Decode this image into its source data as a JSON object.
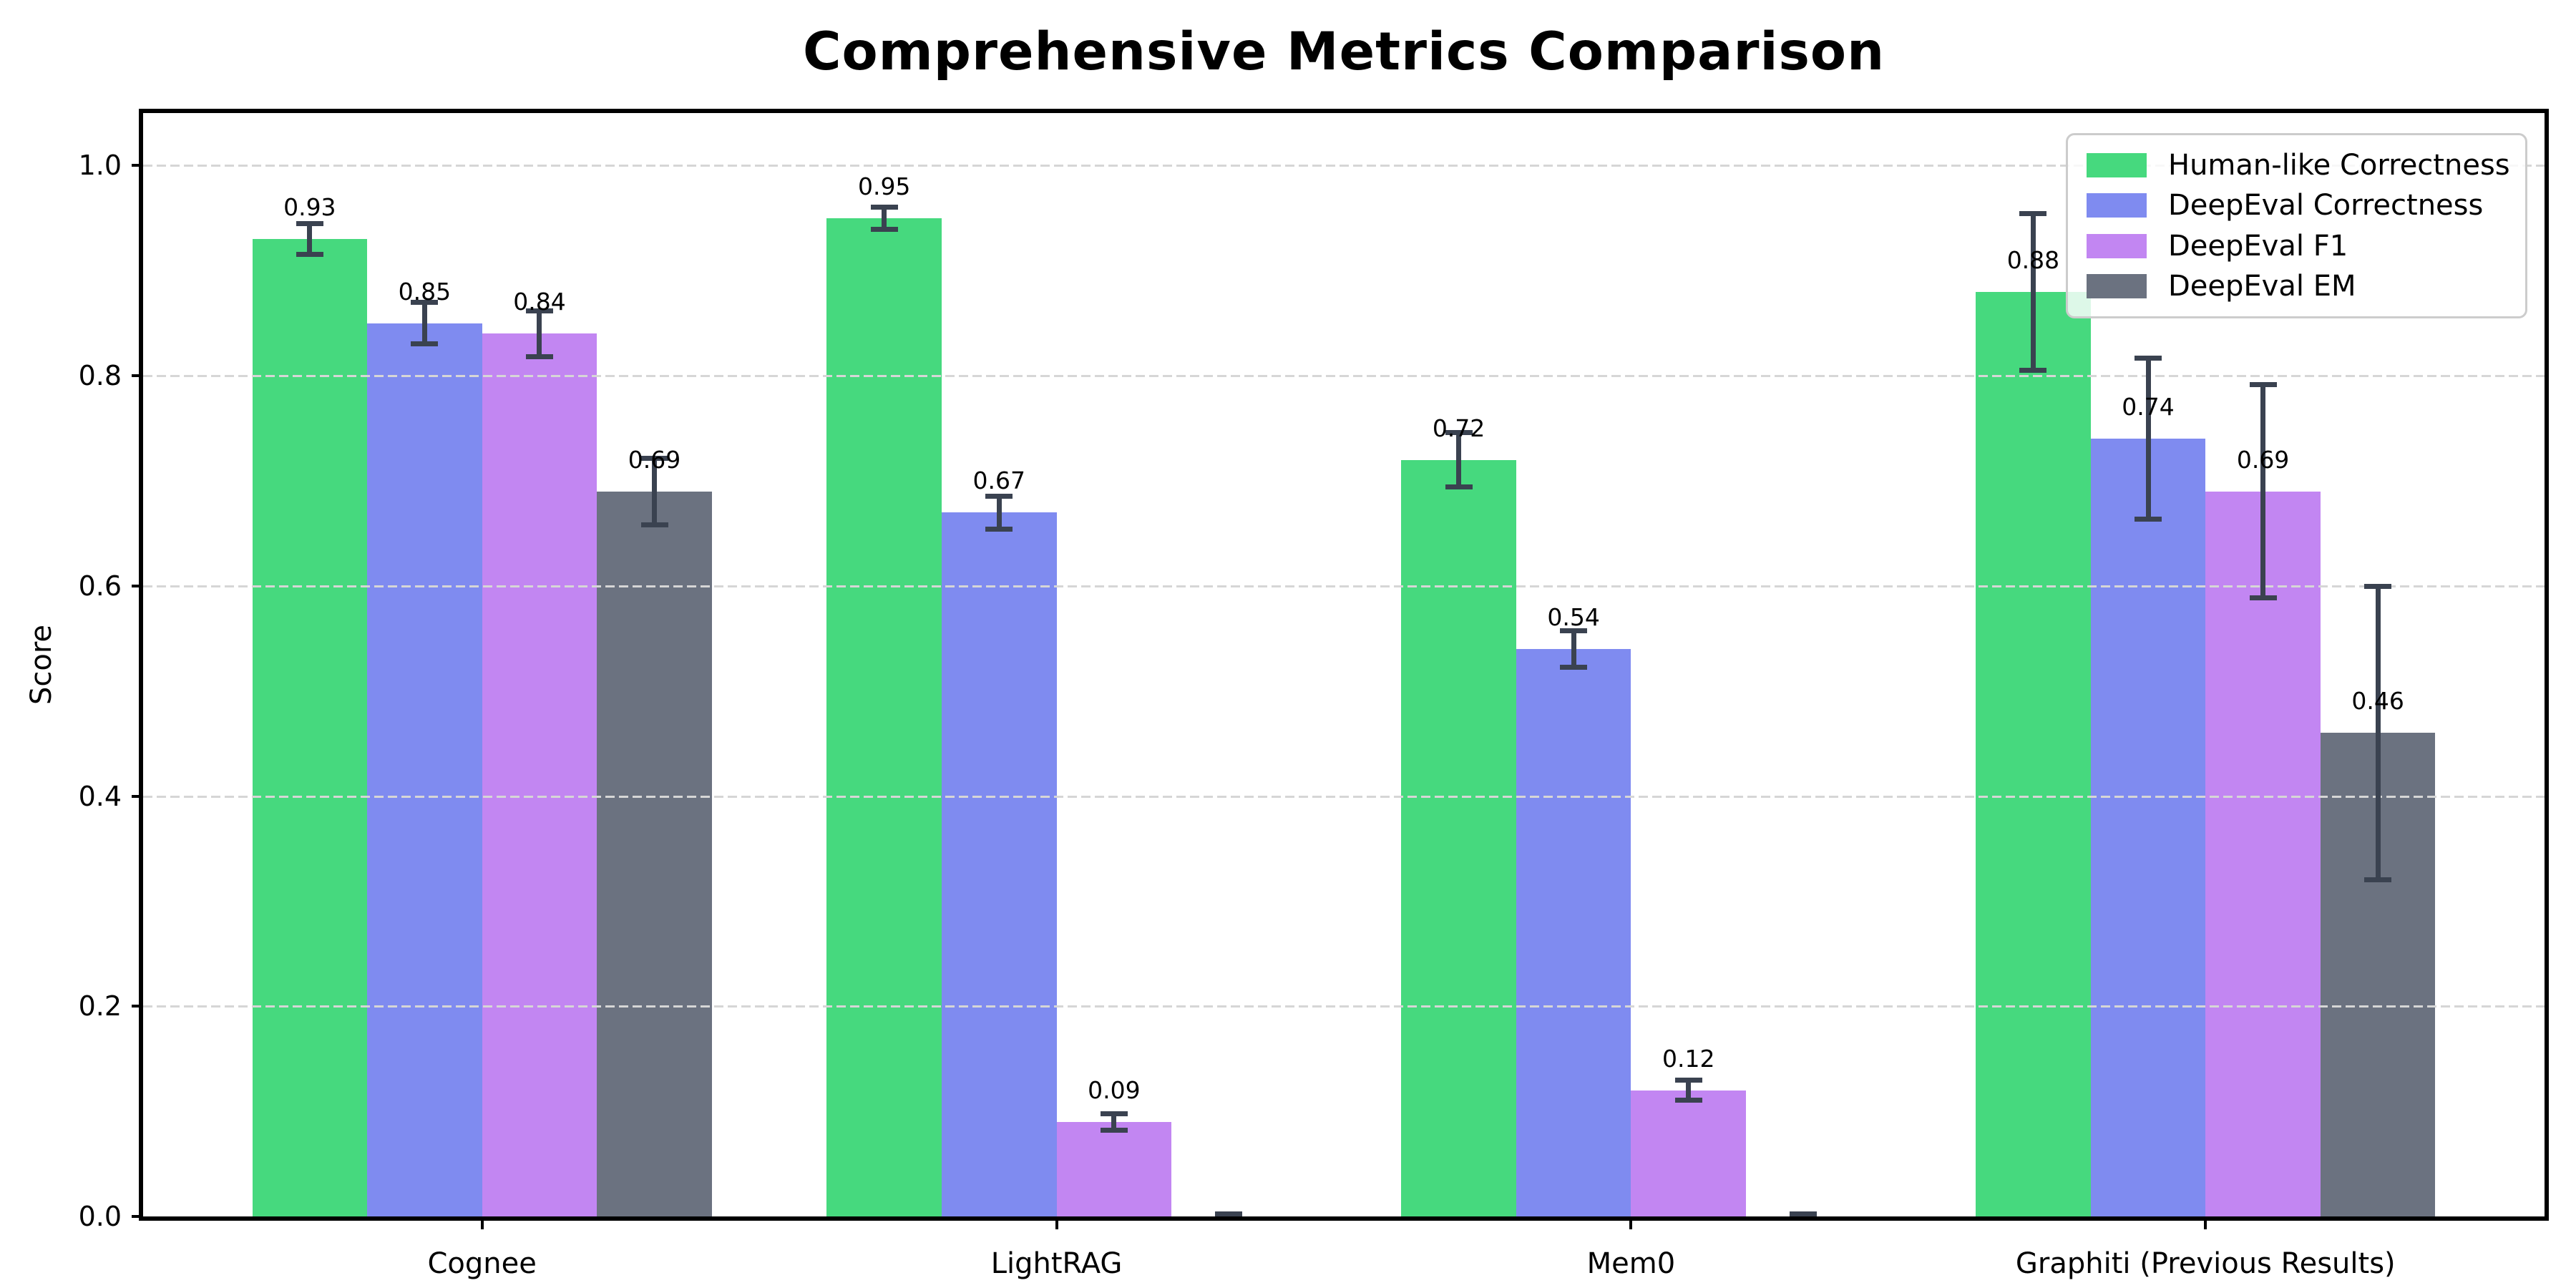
{
  "figure": {
    "background": "#ffffff"
  },
  "chart_data": {
    "type": "bar",
    "title": "Comprehensive Metrics Comparison",
    "xlabel": "",
    "ylabel": "Score",
    "categories": [
      "Cognee",
      "LightRAG",
      "Mem0",
      "Graphiti (Previous Results)"
    ],
    "series": [
      {
        "name": "Human-like Correctness",
        "color": "#46d97e",
        "values": [
          0.93,
          0.95,
          0.72,
          0.88
        ],
        "errors": [
          0.015,
          0.011,
          0.026,
          0.075
        ],
        "labels": [
          "0.93",
          "0.95",
          "0.72",
          "0.88"
        ]
      },
      {
        "name": "DeepEval Correctness",
        "color": "#7f8bf0",
        "values": [
          0.85,
          0.67,
          0.54,
          0.74
        ],
        "errors": [
          0.02,
          0.016,
          0.018,
          0.077
        ],
        "labels": [
          "0.85",
          "0.67",
          "0.54",
          "0.74"
        ]
      },
      {
        "name": "DeepEval F1",
        "color": "#c286f2",
        "values": [
          0.84,
          0.09,
          0.12,
          0.69
        ],
        "errors": [
          0.022,
          0.008,
          0.01,
          0.102
        ],
        "labels": [
          "0.84",
          "0.09",
          "0.12",
          "0.69"
        ]
      },
      {
        "name": "DeepEval EM",
        "color": "#6b7280",
        "values": [
          0.69,
          0.0,
          0.0,
          0.46
        ],
        "errors": [
          0.032,
          0.003,
          0.003,
          0.14
        ],
        "labels": [
          "0.69",
          "",
          "",
          "0.46"
        ]
      }
    ],
    "yticks": [
      {
        "value": 0.0,
        "label": "0.0"
      },
      {
        "value": 0.2,
        "label": "0.2"
      },
      {
        "value": 0.4,
        "label": "0.4"
      },
      {
        "value": 0.6,
        "label": "0.6"
      },
      {
        "value": 0.8,
        "label": "0.8"
      },
      {
        "value": 1.0,
        "label": "1.0"
      }
    ],
    "ylim": [
      0,
      1.05
    ],
    "grid": "horizontal-dashed",
    "grid_color": "#d6d6d6",
    "legend_position": "upper right",
    "error_bar_color": "#3a4250",
    "axis_color": "#000000",
    "text_color": "#000000"
  }
}
